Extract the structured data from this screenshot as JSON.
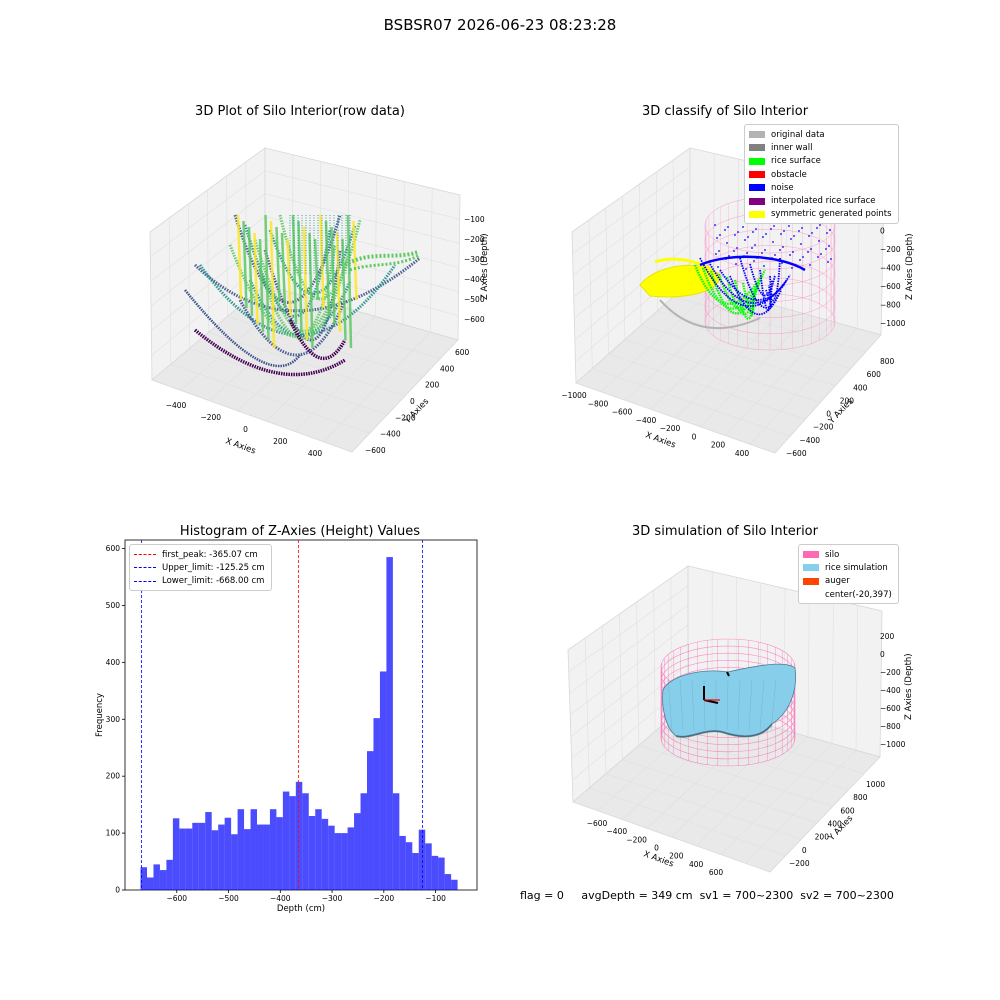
{
  "figure": {
    "suptitle": "BSBSR07 2026-06-23 08:23:28",
    "footer": {
      "flag": "flag = 0",
      "avg_depth": "avgDepth = 349 cm",
      "sv1": "sv1 = 700~2300",
      "sv2": "sv2 = 700~2300"
    }
  },
  "panels": {
    "raw": {
      "title": "3D Plot of Silo Interior(row data)",
      "xlabel": "X Axies",
      "ylabel": "Y Axies",
      "zlabel": "Z Axies (Depth)",
      "x_ticks": [
        "−400",
        "−200",
        "0",
        "200",
        "400"
      ],
      "y_ticks": [
        "−600",
        "−400",
        "−200",
        "0",
        "200",
        "400",
        "600"
      ],
      "z_ticks": [
        "−100",
        "−200",
        "−300",
        "−400",
        "−500",
        "−600"
      ],
      "colormap": [
        "#440154",
        "#3b528b",
        "#21918c",
        "#5ec962",
        "#fde725"
      ]
    },
    "classify": {
      "title": "3D classify of Silo Interior",
      "xlabel": "X Axies",
      "ylabel": "Y Axies",
      "zlabel": "Z Axies (Depth)",
      "x_ticks": [
        "−1000",
        "−800",
        "−600",
        "−400",
        "−200",
        "0",
        "200",
        "400"
      ],
      "y_ticks": [
        "−600",
        "−400",
        "−200",
        "0",
        "200",
        "400",
        "600",
        "800"
      ],
      "z_ticks": [
        "200",
        "0",
        "−200",
        "−400",
        "−600",
        "−800",
        "−1000"
      ],
      "legend": [
        {
          "label": "original data",
          "color": "#b3b3b3"
        },
        {
          "label": "inner wall",
          "color": "#808080"
        },
        {
          "label": "rice surface",
          "color": "#00ff00"
        },
        {
          "label": "obstacle",
          "color": "#ff0000"
        },
        {
          "label": "noise",
          "color": "#0000ff"
        },
        {
          "label": "interpolated rice surface",
          "color": "#800080"
        },
        {
          "label": "symmetric generated points",
          "color": "#ffff00"
        }
      ]
    },
    "simulation": {
      "title": "3D simulation of Silo Interior",
      "xlabel": "X Axies",
      "ylabel": "Y Axies",
      "zlabel": "Z Axies (Depth)",
      "x_ticks": [
        "−600",
        "−400",
        "−200",
        "0",
        "200",
        "400",
        "600"
      ],
      "y_ticks": [
        "−200",
        "0",
        "200",
        "400",
        "600",
        "800",
        "1000"
      ],
      "z_ticks": [
        "200",
        "0",
        "−200",
        "−400",
        "−600",
        "−800",
        "−1000"
      ],
      "legend": [
        {
          "label": "silo",
          "color": "#ff69b4"
        },
        {
          "label": "rice simulation",
          "color": "#87ceeb"
        },
        {
          "label": "auger",
          "color": "#ff4500"
        },
        {
          "label": "center(-20,397)",
          "color": ""
        }
      ]
    }
  },
  "chart_data": [
    {
      "type": "bar",
      "title": "Histogram of Z-Axies (Height) Values",
      "xlabel": "Depth (cm)",
      "ylabel": "Frequency",
      "xlim": [
        -700,
        -20
      ],
      "ylim": [
        0,
        615
      ],
      "x_ticks": [
        -600,
        -500,
        -400,
        -300,
        -200,
        -100
      ],
      "x_tick_labels": [
        "−600",
        "−500",
        "−400",
        "−300",
        "−200",
        "−100"
      ],
      "y_ticks": [
        0,
        100,
        200,
        300,
        400,
        500,
        600
      ],
      "bar_color": "#0000ff",
      "bins": {
        "start": -670,
        "width": 12.5,
        "counts": [
          40,
          22,
          45,
          35,
          53,
          126,
          108,
          108,
          118,
          118,
          137,
          105,
          115,
          127,
          98,
          142,
          107,
          142,
          115,
          115,
          142,
          128,
          173,
          165,
          190,
          170,
          130,
          142,
          125,
          113,
          100,
          100,
          110,
          135,
          170,
          244,
          302,
          384,
          585,
          170,
          95,
          84,
          65,
          106,
          82,
          60,
          57,
          28,
          18
        ]
      },
      "lines": [
        {
          "name": "first_peak: -365.07 cm",
          "x": -365.07,
          "color": "#ff0000"
        },
        {
          "name": "Upper_limit: -125.25 cm",
          "x": -125.25,
          "color": "#0000ff"
        },
        {
          "name": "Lower_limit: -668.00 cm",
          "x": -668.0,
          "color": "#0000ff"
        }
      ],
      "legend": "top-left"
    }
  ]
}
